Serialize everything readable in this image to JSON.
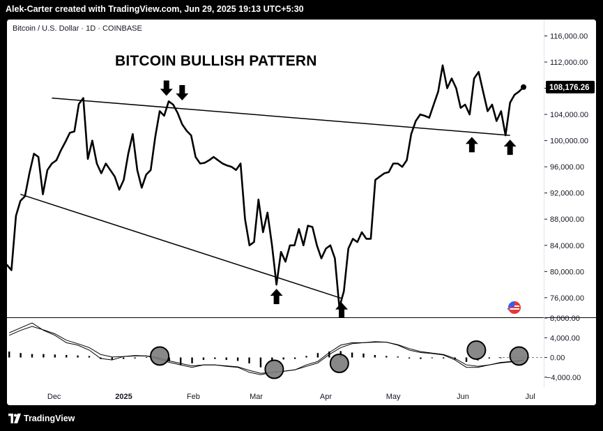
{
  "header": {
    "credit": "Alek-Carter created with TradingView.com, Jun 29, 2025 19:13 UTC+5:30"
  },
  "footer": {
    "brand": "TradingView"
  },
  "colors": {
    "background": "#ffffff",
    "line": "#000000",
    "frame": "#000000",
    "last_price_badge": "#000000",
    "circle_fill": "#7b7b7b"
  },
  "icons": {
    "brand_logo": "tradingview-logo-icon",
    "flag_badge": "us-flag-badge-icon",
    "arrow_up": "arrow-up-icon",
    "arrow_down": "arrow-down-icon"
  },
  "chart_data": [
    {
      "type": "line",
      "symbol": "Bitcoin / U.S. Dollar · 1D · COINBASE",
      "title": "BITCOIN BULLISH PATTERN",
      "last_price_label": "108,176.26",
      "last_price": 108176,
      "ylim": [
        73000,
        118500
      ],
      "y_ticks": [
        76000,
        80000,
        84000,
        88000,
        92000,
        96000,
        100000,
        104000,
        108000,
        112000,
        116000
      ],
      "y_tick_labels": [
        "76,000.00",
        "80,000.00",
        "84,000.00",
        "88,000.00",
        "92,000.00",
        "96,000.00",
        "100,000.00",
        "104,000.00",
        "108,000.00",
        "112,000.00",
        "116,000.00"
      ],
      "x_range": [
        "2024-11-10",
        "2025-07-07"
      ],
      "x_ticks": [
        "2024-12-01",
        "2025-01-01",
        "2025-02-01",
        "2025-03-01",
        "2025-04-01",
        "2025-05-01",
        "2025-06-01",
        "2025-07-01"
      ],
      "x_tick_labels": [
        "Dec",
        "2025",
        "Feb",
        "Mar",
        "Apr",
        "May",
        "Jun",
        "Jul"
      ],
      "x": [
        "2024-11-10",
        "2024-11-12",
        "2024-11-14",
        "2024-11-16",
        "2024-11-18",
        "2024-11-20",
        "2024-11-22",
        "2024-11-24",
        "2024-11-26",
        "2024-11-28",
        "2024-11-30",
        "2024-12-02",
        "2024-12-04",
        "2024-12-06",
        "2024-12-08",
        "2024-12-10",
        "2024-12-12",
        "2024-12-14",
        "2024-12-16",
        "2024-12-18",
        "2024-12-20",
        "2024-12-22",
        "2024-12-24",
        "2024-12-26",
        "2024-12-28",
        "2024-12-30",
        "2025-01-01",
        "2025-01-03",
        "2025-01-05",
        "2025-01-07",
        "2025-01-09",
        "2025-01-11",
        "2025-01-13",
        "2025-01-15",
        "2025-01-17",
        "2025-01-19",
        "2025-01-21",
        "2025-01-23",
        "2025-01-25",
        "2025-01-27",
        "2025-01-29",
        "2025-01-31",
        "2025-02-02",
        "2025-02-04",
        "2025-02-06",
        "2025-02-08",
        "2025-02-10",
        "2025-02-12",
        "2025-02-14",
        "2025-02-16",
        "2025-02-18",
        "2025-02-20",
        "2025-02-22",
        "2025-02-24",
        "2025-02-26",
        "2025-02-28",
        "2025-03-02",
        "2025-03-04",
        "2025-03-06",
        "2025-03-08",
        "2025-03-10",
        "2025-03-12",
        "2025-03-14",
        "2025-03-16",
        "2025-03-18",
        "2025-03-20",
        "2025-03-22",
        "2025-03-24",
        "2025-03-26",
        "2025-03-28",
        "2025-03-30",
        "2025-04-01",
        "2025-04-03",
        "2025-04-05",
        "2025-04-07",
        "2025-04-09",
        "2025-04-11",
        "2025-04-13",
        "2025-04-15",
        "2025-04-17",
        "2025-04-19",
        "2025-04-21",
        "2025-04-23",
        "2025-04-25",
        "2025-04-27",
        "2025-04-29",
        "2025-05-01",
        "2025-05-03",
        "2025-05-05",
        "2025-05-07",
        "2025-05-09",
        "2025-05-11",
        "2025-05-13",
        "2025-05-15",
        "2025-05-17",
        "2025-05-19",
        "2025-05-21",
        "2025-05-23",
        "2025-05-25",
        "2025-05-27",
        "2025-05-29",
        "2025-05-31",
        "2025-06-02",
        "2025-06-04",
        "2025-06-06",
        "2025-06-08",
        "2025-06-10",
        "2025-06-12",
        "2025-06-14",
        "2025-06-16",
        "2025-06-18",
        "2025-06-20",
        "2025-06-22",
        "2025-06-24",
        "2025-06-26",
        "2025-06-28"
      ],
      "y": [
        81000,
        80200,
        88500,
        90800,
        91500,
        95000,
        98000,
        97500,
        91800,
        95500,
        96500,
        97000,
        98500,
        99800,
        101200,
        101400,
        105600,
        106500,
        97200,
        100000,
        96500,
        95000,
        96500,
        95500,
        94500,
        92500,
        94000,
        98000,
        101000,
        95500,
        92800,
        94800,
        95500,
        100500,
        104500,
        103800,
        106000,
        105500,
        104200,
        102500,
        101500,
        100800,
        97500,
        96500,
        96600,
        97000,
        97500,
        97000,
        96500,
        96200,
        96000,
        95500,
        96500,
        88000,
        84000,
        84500,
        91000,
        86000,
        89000,
        84000,
        78000,
        83000,
        81500,
        84000,
        84000,
        86500,
        84000,
        87000,
        86800,
        84000,
        82000,
        83500,
        84000,
        82000,
        74500,
        77000,
        83500,
        85000,
        84500,
        86000,
        85000,
        85000,
        94000,
        94500,
        95000,
        95200,
        96500,
        96500,
        96000,
        97000,
        101000,
        103000,
        104000,
        103800,
        103500,
        105500,
        107500,
        111500,
        108000,
        109500,
        108000,
        105000,
        105500,
        104000,
        109500,
        110500,
        107500,
        104500,
        105500,
        103000,
        104500,
        100800,
        105800,
        107000,
        107500,
        108176
      ],
      "resistance_line": {
        "start": [
          "2024-11-30",
          106500
        ],
        "end": [
          "2025-06-22",
          100800
        ]
      },
      "support_line": {
        "start": [
          "2024-11-16",
          91800
        ],
        "end": [
          "2025-04-08",
          75900
        ]
      },
      "arrow_markers": [
        {
          "direction": "down",
          "x": "2025-01-20",
          "y": 106200
        },
        {
          "direction": "down",
          "x": "2025-01-27",
          "y": 105500
        },
        {
          "direction": "up",
          "x": "2025-03-10",
          "y": 78000
        },
        {
          "direction": "up",
          "x": "2025-04-08",
          "y": 75900
        },
        {
          "direction": "up",
          "x": "2025-06-05",
          "y": 101200
        },
        {
          "direction": "up",
          "x": "2025-06-22",
          "y": 100800
        }
      ]
    },
    {
      "type": "line",
      "series": [
        {
          "name": "",
          "values": [
            5000,
            6000,
            7000,
            5500,
            4500,
            3000,
            2500,
            1500,
            -200,
            -500,
            200,
            400,
            300,
            -300,
            -1000,
            -1500,
            -2000,
            -1500,
            -1500,
            -1800,
            -2000,
            -3000,
            -3500,
            -3000,
            -2800,
            -2500,
            -1500,
            -800,
            1000,
            2500,
            3000,
            3000,
            3200,
            3100,
            2500,
            1500,
            1000,
            800,
            500,
            -500,
            -2000,
            -2000,
            -1500,
            -1000,
            -800,
            -500
          ]
        },
        {
          "name": "",
          "values": [
            4500,
            5500,
            6300,
            5600,
            4800,
            3500,
            2800,
            2000,
            600,
            100,
            200,
            300,
            300,
            0,
            -700,
            -1200,
            -1700,
            -1500,
            -1500,
            -1700,
            -1900,
            -2600,
            -3200,
            -3000,
            -2800,
            -2500,
            -1800,
            -1100,
            600,
            2000,
            2800,
            3000,
            3100,
            3100,
            2600,
            1800,
            1200,
            900,
            600,
            -200,
            -1500,
            -1800,
            -1500,
            -1100,
            -900,
            -600
          ]
        }
      ],
      "histogram_values": [
        1200,
        900,
        700,
        700,
        600,
        500,
        400,
        300,
        -300,
        -400,
        -300,
        -200,
        100,
        -300,
        -800,
        -1500,
        -1200,
        -500,
        -300,
        -500,
        -700,
        -1200,
        -2000,
        -900,
        -400,
        -300,
        300,
        900,
        1200,
        1300,
        1000,
        800,
        500,
        300,
        200,
        -200,
        -300,
        -100,
        -200,
        -400,
        -900,
        -600,
        -200,
        -100,
        -100,
        -100
      ],
      "ylim": [
        -6000,
        8000
      ],
      "y_ticks": [
        -4000,
        0,
        4000,
        8000
      ],
      "y_tick_labels": [
        "−4,000.00",
        "0.00",
        "4,000.00",
        "8,000.00"
      ],
      "circle_markers": [
        {
          "x": "2025-01-17",
          "y": 300
        },
        {
          "x": "2025-03-09",
          "y": -2400
        },
        {
          "x": "2025-04-07",
          "y": -1200
        },
        {
          "x": "2025-06-07",
          "y": 1500
        },
        {
          "x": "2025-06-26",
          "y": 300
        }
      ]
    }
  ]
}
